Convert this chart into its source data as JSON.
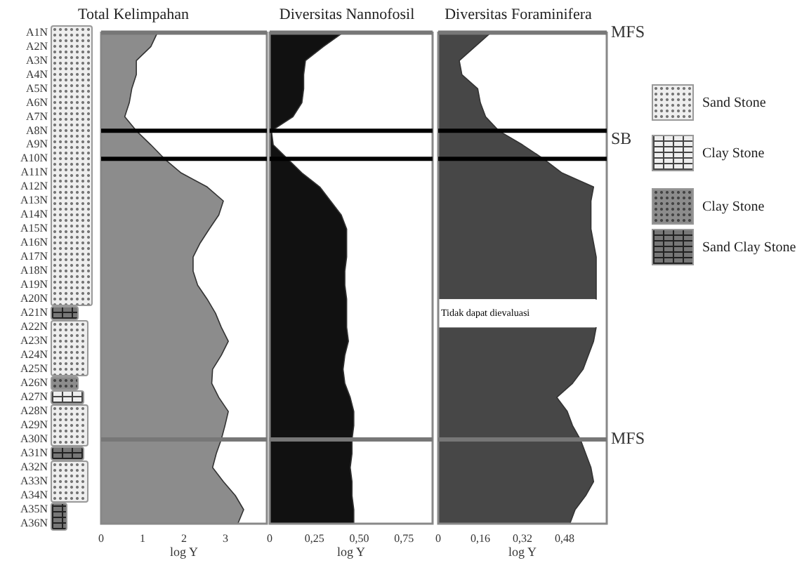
{
  "chart_data": [
    {
      "type": "area",
      "title": "Total Kelimpahan",
      "xlabel": "log Y",
      "orientation": "horizontal",
      "categories": [
        "A1N",
        "A2N",
        "A3N",
        "A4N",
        "A5N",
        "A6N",
        "A7N",
        "A8N",
        "A9N",
        "A10N",
        "A11N",
        "A12N",
        "A13N",
        "A14N",
        "A15N",
        "A16N",
        "A17N",
        "A18N",
        "A19N",
        "A20N",
        "A21N",
        "A22N",
        "A23N",
        "A24N",
        "A25N",
        "A26N",
        "A27N",
        "A28N",
        "A29N",
        "A30N",
        "A31N",
        "A32N",
        "A33N",
        "A34N",
        "A35N",
        "A36N"
      ],
      "values": [
        1.36,
        1.2,
        0.85,
        0.85,
        0.74,
        0.68,
        0.57,
        0.85,
        1.2,
        1.53,
        1.93,
        2.56,
        2.95,
        2.84,
        2.61,
        2.39,
        2.22,
        2.22,
        2.33,
        2.56,
        2.76,
        2.9,
        3.07,
        2.9,
        2.69,
        2.67,
        2.84,
        3.07,
        2.99,
        2.9,
        2.78,
        2.69,
        2.95,
        3.24,
        3.44,
        3.3
      ],
      "color": "#8c8c8c",
      "xlim": [
        0,
        4
      ],
      "xticks": [
        0,
        1,
        2,
        3
      ],
      "grid": false,
      "legend": false,
      "ref_lines": [
        {
          "axis": "y",
          "value": "A1N",
          "label": null,
          "color": "#777777"
        },
        {
          "axis": "y",
          "value": "A8N",
          "label": null,
          "color": "#000000"
        },
        {
          "axis": "y",
          "value": "A10N",
          "label": null,
          "color": "#000000"
        },
        {
          "axis": "y",
          "value": "A30N",
          "label": null,
          "color": "#777777"
        }
      ]
    },
    {
      "type": "area",
      "title": "Diversitas Nannofosil",
      "xlabel": "log Y",
      "orientation": "horizontal",
      "categories": [
        "A1N",
        "A2N",
        "A3N",
        "A4N",
        "A5N",
        "A6N",
        "A7N",
        "A8N",
        "A9N",
        "A10N",
        "A11N",
        "A12N",
        "A13N",
        "A14N",
        "A15N",
        "A16N",
        "A17N",
        "A18N",
        "A19N",
        "A20N",
        "A21N",
        "A22N",
        "A23N",
        "A24N",
        "A25N",
        "A26N",
        "A27N",
        "A28N",
        "A29N",
        "A30N",
        "A31N",
        "A32N",
        "A33N",
        "A34N",
        "A35N",
        "A36N"
      ],
      "values": [
        0.41,
        0.3,
        0.2,
        0.19,
        0.19,
        0.18,
        0.13,
        0.01,
        0.02,
        0.1,
        0.18,
        0.28,
        0.34,
        0.4,
        0.43,
        0.43,
        0.43,
        0.42,
        0.42,
        0.43,
        0.43,
        0.43,
        0.44,
        0.42,
        0.41,
        0.42,
        0.45,
        0.47,
        0.47,
        0.46,
        0.46,
        0.45,
        0.46,
        0.46,
        0.47,
        0.47
      ],
      "color": "#111111",
      "xlim": [
        0,
        0.91
      ],
      "xticks": [
        0,
        {
          "value": 0.25,
          "label": "0,25"
        },
        {
          "value": 0.5,
          "label": "0,50"
        },
        {
          "value": 0.75,
          "label": "0,75"
        }
      ],
      "grid": false,
      "legend": false,
      "tick_labels": "x",
      "ref_lines": [
        {
          "axis": "y",
          "value": "A1N",
          "label": null,
          "color": "#777777"
        },
        {
          "axis": "y",
          "value": "A8N",
          "label": null,
          "color": "#000000"
        },
        {
          "axis": "y",
          "value": "A10N",
          "label": null,
          "color": "#000000"
        },
        {
          "axis": "y",
          "value": "A30N",
          "label": null,
          "color": "#777777"
        }
      ]
    },
    {
      "type": "area",
      "title": "Diversitas Foraminifera",
      "xlabel": "log Y",
      "orientation": "horizontal",
      "categories": [
        "A1N",
        "A2N",
        "A3N",
        "A4N",
        "A5N",
        "A6N",
        "A7N",
        "A8N",
        "A9N",
        "A10N",
        "A11N",
        "A12N",
        "A13N",
        "A14N",
        "A15N",
        "A16N",
        "A17N",
        "A18N",
        "A19N",
        "A20N",
        "A21N",
        "A22N",
        "A23N",
        "A24N",
        "A25N",
        "A26N",
        "A27N",
        "A28N",
        "A29N",
        "A30N",
        "A31N",
        "A32N",
        "A33N",
        "A34N",
        "A35N",
        "A36N"
      ],
      "values": [
        0.2,
        0.14,
        0.08,
        0.09,
        0.15,
        0.16,
        0.18,
        0.23,
        0.32,
        0.4,
        0.47,
        0.59,
        0.58,
        0.58,
        0.58,
        0.59,
        0.6,
        0.6,
        0.6,
        0.6,
        null,
        0.6,
        0.59,
        0.57,
        0.55,
        0.51,
        0.45,
        0.49,
        0.51,
        0.54,
        0.56,
        0.58,
        0.59,
        0.56,
        0.52,
        0.5
      ],
      "color": "#474747",
      "xlim": [
        0,
        0.64
      ],
      "xticks": [
        0,
        {
          "value": 0.16,
          "label": "0,16"
        },
        {
          "value": 0.32,
          "label": "0,32"
        },
        {
          "value": 0.48,
          "label": "0,48"
        }
      ],
      "grid": false,
      "legend": false,
      "tick_labels": "x",
      "annotations": [
        "Tidak dapat dievaluasi"
      ],
      "ref_lines": [
        {
          "axis": "y",
          "value": "A1N",
          "label": "MFS",
          "color": "#777777"
        },
        {
          "axis": "y",
          "value": "A8N",
          "label": "SB",
          "color": "#000000"
        },
        {
          "axis": "y",
          "value": "A10N",
          "label": null,
          "color": "#000000"
        },
        {
          "axis": "y",
          "value": "A30N",
          "label": "MFS",
          "color": "#777777"
        }
      ]
    },
    {
      "type": "other",
      "annotations": [
        "Sand Stone",
        "Clay Stone",
        "Clay Stone",
        "Sand Clay Stone"
      ]
    }
  ]
}
